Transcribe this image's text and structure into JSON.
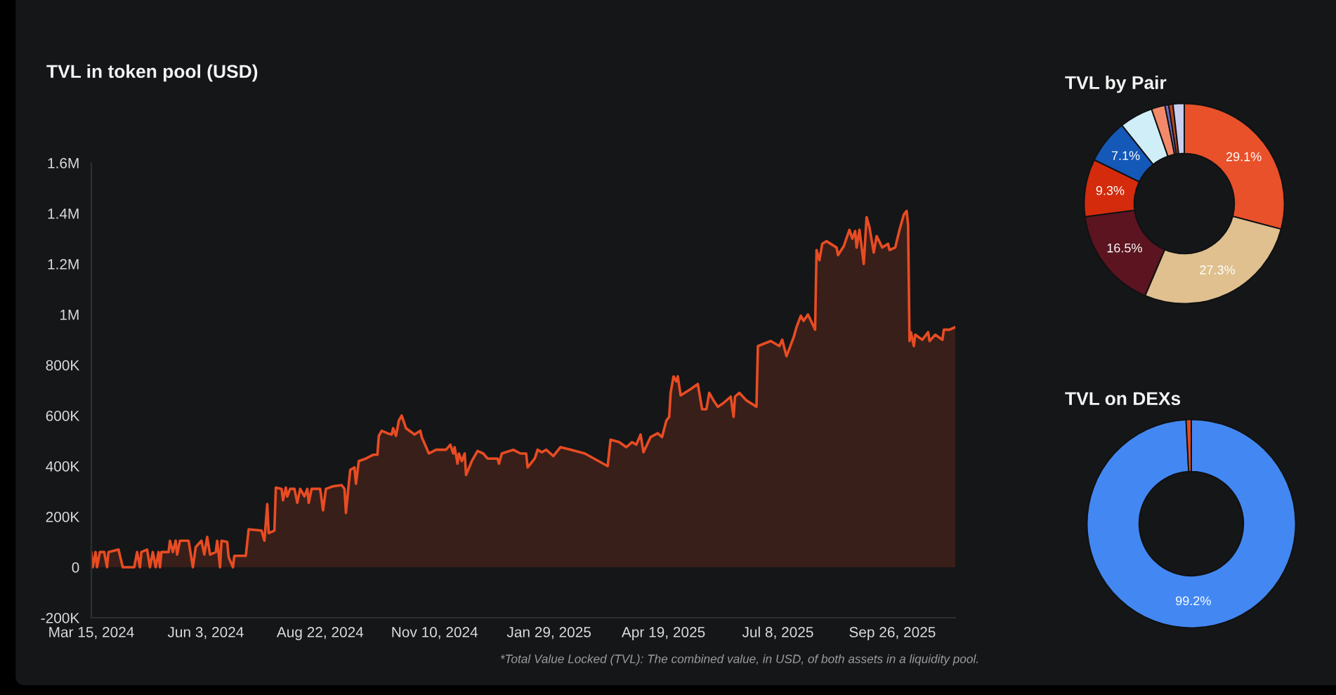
{
  "chart_data": [
    {
      "type": "area",
      "title": "TVL in token pool (USD)",
      "color": "#e84c23",
      "x": [
        "2024-03-15",
        "2024-03-16",
        "2024-03-18",
        "2024-03-19",
        "2024-03-21",
        "2024-03-24",
        "2024-03-26",
        "2024-03-27",
        "2024-04-03",
        "2024-04-06",
        "2024-04-14",
        "2024-04-16",
        "2024-04-18",
        "2024-04-19",
        "2024-04-23",
        "2024-04-25",
        "2024-04-27",
        "2024-04-29",
        "2024-05-01",
        "2024-05-02",
        "2024-05-03",
        "2024-05-08",
        "2024-05-09",
        "2024-05-11",
        "2024-05-13",
        "2024-05-14",
        "2024-05-16",
        "2024-05-22",
        "2024-05-25",
        "2024-05-27",
        "2024-05-31",
        "2024-06-02",
        "2024-06-04",
        "2024-06-06",
        "2024-06-10",
        "2024-06-11",
        "2024-06-13",
        "2024-06-14",
        "2024-06-18",
        "2024-06-19",
        "2024-06-22",
        "2024-06-23",
        "2024-07-01",
        "2024-07-03",
        "2024-07-12",
        "2024-07-14",
        "2024-07-16",
        "2024-07-17",
        "2024-07-21",
        "2024-07-22",
        "2024-07-26",
        "2024-07-27",
        "2024-07-29",
        "2024-07-30",
        "2024-08-01",
        "2024-08-04",
        "2024-08-06",
        "2024-08-08",
        "2024-08-11",
        "2024-08-13",
        "2024-08-14",
        "2024-08-16",
        "2024-08-22",
        "2024-08-24",
        "2024-08-26",
        "2024-08-31",
        "2024-09-06",
        "2024-09-08",
        "2024-09-09",
        "2024-09-11",
        "2024-09-12",
        "2024-09-15",
        "2024-09-16",
        "2024-09-18",
        "2024-09-23",
        "2024-09-28",
        "2024-10-01",
        "2024-10-02",
        "2024-10-04",
        "2024-10-08",
        "2024-10-11",
        "2024-10-12",
        "2024-10-14",
        "2024-10-16",
        "2024-10-18",
        "2024-10-21",
        "2024-10-27",
        "2024-10-31",
        "2024-11-01",
        "2024-11-06",
        "2024-11-11",
        "2024-11-18",
        "2024-11-21",
        "2024-11-23",
        "2024-11-24",
        "2024-11-26",
        "2024-11-27",
        "2024-11-29",
        "2024-12-01",
        "2024-12-02",
        "2024-12-06",
        "2024-12-10",
        "2024-12-14",
        "2024-12-17",
        "2024-12-24",
        "2024-12-25",
        "2024-12-27",
        "2025-01-04",
        "2025-01-09",
        "2025-01-13",
        "2025-01-14",
        "2025-01-19",
        "2025-01-21",
        "2025-01-24",
        "2025-01-27",
        "2025-02-01",
        "2025-02-06",
        "2025-02-13",
        "2025-02-23",
        "2025-03-03",
        "2025-03-11",
        "2025-03-13",
        "2025-03-19",
        "2025-03-24",
        "2025-03-28",
        "2025-03-31",
        "2025-04-03",
        "2025-04-05",
        "2025-04-10",
        "2025-04-15",
        "2025-04-18",
        "2025-04-21",
        "2025-04-23",
        "2025-04-24",
        "2025-04-26",
        "2025-04-28",
        "2025-04-29",
        "2025-05-01",
        "2025-05-08",
        "2025-05-13",
        "2025-05-16",
        "2025-05-19",
        "2025-05-21",
        "2025-05-24",
        "2025-05-27",
        "2025-05-31",
        "2025-06-05",
        "2025-06-07",
        "2025-06-08",
        "2025-06-11",
        "2025-06-16",
        "2025-06-23",
        "2025-06-24",
        "2025-07-03",
        "2025-07-09",
        "2025-07-11",
        "2025-07-14",
        "2025-07-19",
        "2025-07-21",
        "2025-07-24",
        "2025-07-26",
        "2025-07-29",
        "2025-08-03",
        "2025-08-04",
        "2025-08-06",
        "2025-08-08",
        "2025-08-11",
        "2025-08-18",
        "2025-08-19",
        "2025-08-23",
        "2025-08-27",
        "2025-08-29",
        "2025-08-31",
        "2025-09-01",
        "2025-09-03",
        "2025-09-06",
        "2025-09-08",
        "2025-09-10",
        "2025-09-13",
        "2025-09-15",
        "2025-09-19",
        "2025-09-23",
        "2025-09-24",
        "2025-09-28",
        "2025-10-01",
        "2025-10-04",
        "2025-10-06",
        "2025-10-07",
        "2025-10-08",
        "2025-10-09",
        "2025-10-11",
        "2025-10-12",
        "2025-10-17",
        "2025-10-21",
        "2025-10-22",
        "2025-10-26",
        "2025-10-31",
        "2025-11-01",
        "2025-11-05",
        "2025-11-09"
      ],
      "values": [
        60000,
        0,
        60000,
        0,
        60000,
        60000,
        0,
        60000,
        70000,
        0,
        0,
        60000,
        0,
        60000,
        70000,
        0,
        60000,
        0,
        60000,
        0,
        60000,
        60000,
        105000,
        60000,
        105000,
        50000,
        105000,
        105000,
        0,
        80000,
        105000,
        50000,
        120000,
        50000,
        60000,
        105000,
        0,
        105000,
        100000,
        40000,
        0,
        45000,
        45000,
        150000,
        145000,
        105000,
        250000,
        135000,
        145000,
        315000,
        310000,
        265000,
        315000,
        280000,
        310000,
        310000,
        255000,
        310000,
        280000,
        310000,
        255000,
        310000,
        310000,
        225000,
        310000,
        320000,
        325000,
        310000,
        215000,
        330000,
        385000,
        395000,
        330000,
        420000,
        430000,
        445000,
        445000,
        520000,
        540000,
        530000,
        525000,
        550000,
        520000,
        580000,
        600000,
        550000,
        525000,
        540000,
        515000,
        450000,
        465000,
        465000,
        485000,
        450000,
        475000,
        410000,
        450000,
        420000,
        450000,
        365000,
        420000,
        460000,
        450000,
        430000,
        430000,
        410000,
        450000,
        465000,
        450000,
        450000,
        395000,
        430000,
        465000,
        455000,
        465000,
        440000,
        475000,
        465000,
        450000,
        425000,
        400000,
        505000,
        495000,
        475000,
        495000,
        485000,
        525000,
        455000,
        515000,
        530000,
        515000,
        580000,
        595000,
        690000,
        755000,
        735000,
        755000,
        680000,
        705000,
        725000,
        625000,
        625000,
        690000,
        660000,
        635000,
        650000,
        675000,
        595000,
        675000,
        690000,
        660000,
        635000,
        875000,
        895000,
        875000,
        900000,
        835000,
        910000,
        950000,
        995000,
        975000,
        1000000,
        940000,
        1255000,
        1215000,
        1280000,
        1290000,
        1265000,
        1235000,
        1270000,
        1335000,
        1300000,
        1330000,
        1265000,
        1335000,
        1200000,
        1385000,
        1345000,
        1245000,
        1310000,
        1265000,
        1280000,
        1255000,
        1265000,
        1335000,
        1395000,
        1410000,
        1355000,
        895000,
        930000,
        875000,
        920000,
        900000,
        930000,
        895000,
        920000,
        900000,
        940000,
        940000,
        950000
      ],
      "xlim": [
        "2024-03-15",
        "2025-11-09"
      ],
      "xticks": [
        {
          "value": "2024-03-15",
          "label": "Mar 15, 2024"
        },
        {
          "value": "2024-06-03",
          "label": "Jun 3, 2024"
        },
        {
          "value": "2024-08-22",
          "label": "Aug 22, 2024"
        },
        {
          "value": "2024-11-10",
          "label": "Nov 10, 2024"
        },
        {
          "value": "2025-01-29",
          "label": "Jan 29, 2025"
        },
        {
          "value": "2025-04-19",
          "label": "Apr 19, 2025"
        },
        {
          "value": "2025-07-08",
          "label": "Jul 8, 2025"
        },
        {
          "value": "2025-09-26",
          "label": "Sep 26, 2025"
        }
      ],
      "ylim": [
        -200000,
        1600000
      ],
      "yticks": [
        {
          "value": -200000,
          "label": "-200K"
        },
        0,
        {
          "value": 200000,
          "label": "200K"
        },
        {
          "value": 400000,
          "label": "400K"
        },
        {
          "value": 600000,
          "label": "600K"
        },
        {
          "value": 800000,
          "label": "800K"
        },
        {
          "value": 1000000,
          "label": "1M"
        },
        {
          "value": 1200000,
          "label": "1.2M"
        },
        {
          "value": 1400000,
          "label": "1.4M"
        },
        {
          "value": 1600000,
          "label": "1.6M"
        }
      ],
      "annotations": [
        "*Total Value Locked (TVL): The combined value, in USD, of both assets in a liquidity pool."
      ]
    },
    {
      "type": "donut",
      "title": "TVL by Pair",
      "categories": [
        null,
        null,
        null,
        null,
        null,
        null,
        null,
        null,
        null,
        null
      ],
      "values": [
        29.1,
        27.3,
        16.5,
        9.3,
        7.1,
        5.4,
        2.2,
        0.6,
        0.7,
        1.8
      ],
      "colors": [
        "#e8512a",
        "#dfc08e",
        "#5b1420",
        "#d32b0c",
        "#1458b8",
        "#d0eef8",
        "#f28a6a",
        "#6e6cc4",
        "#b5471c",
        "#c9cfee"
      ],
      "value_labels": [
        "29.1%",
        "27.3%",
        "16.5%",
        "9.3%",
        "7.1%",
        null,
        null,
        null,
        null,
        null
      ]
    },
    {
      "type": "donut",
      "title": "TVL on DEXs",
      "categories": [
        null,
        null
      ],
      "values": [
        99.2,
        0.8
      ],
      "colors": [
        "#4388f2",
        "#e64a22"
      ],
      "value_labels": [
        "99.2%",
        null
      ]
    }
  ]
}
